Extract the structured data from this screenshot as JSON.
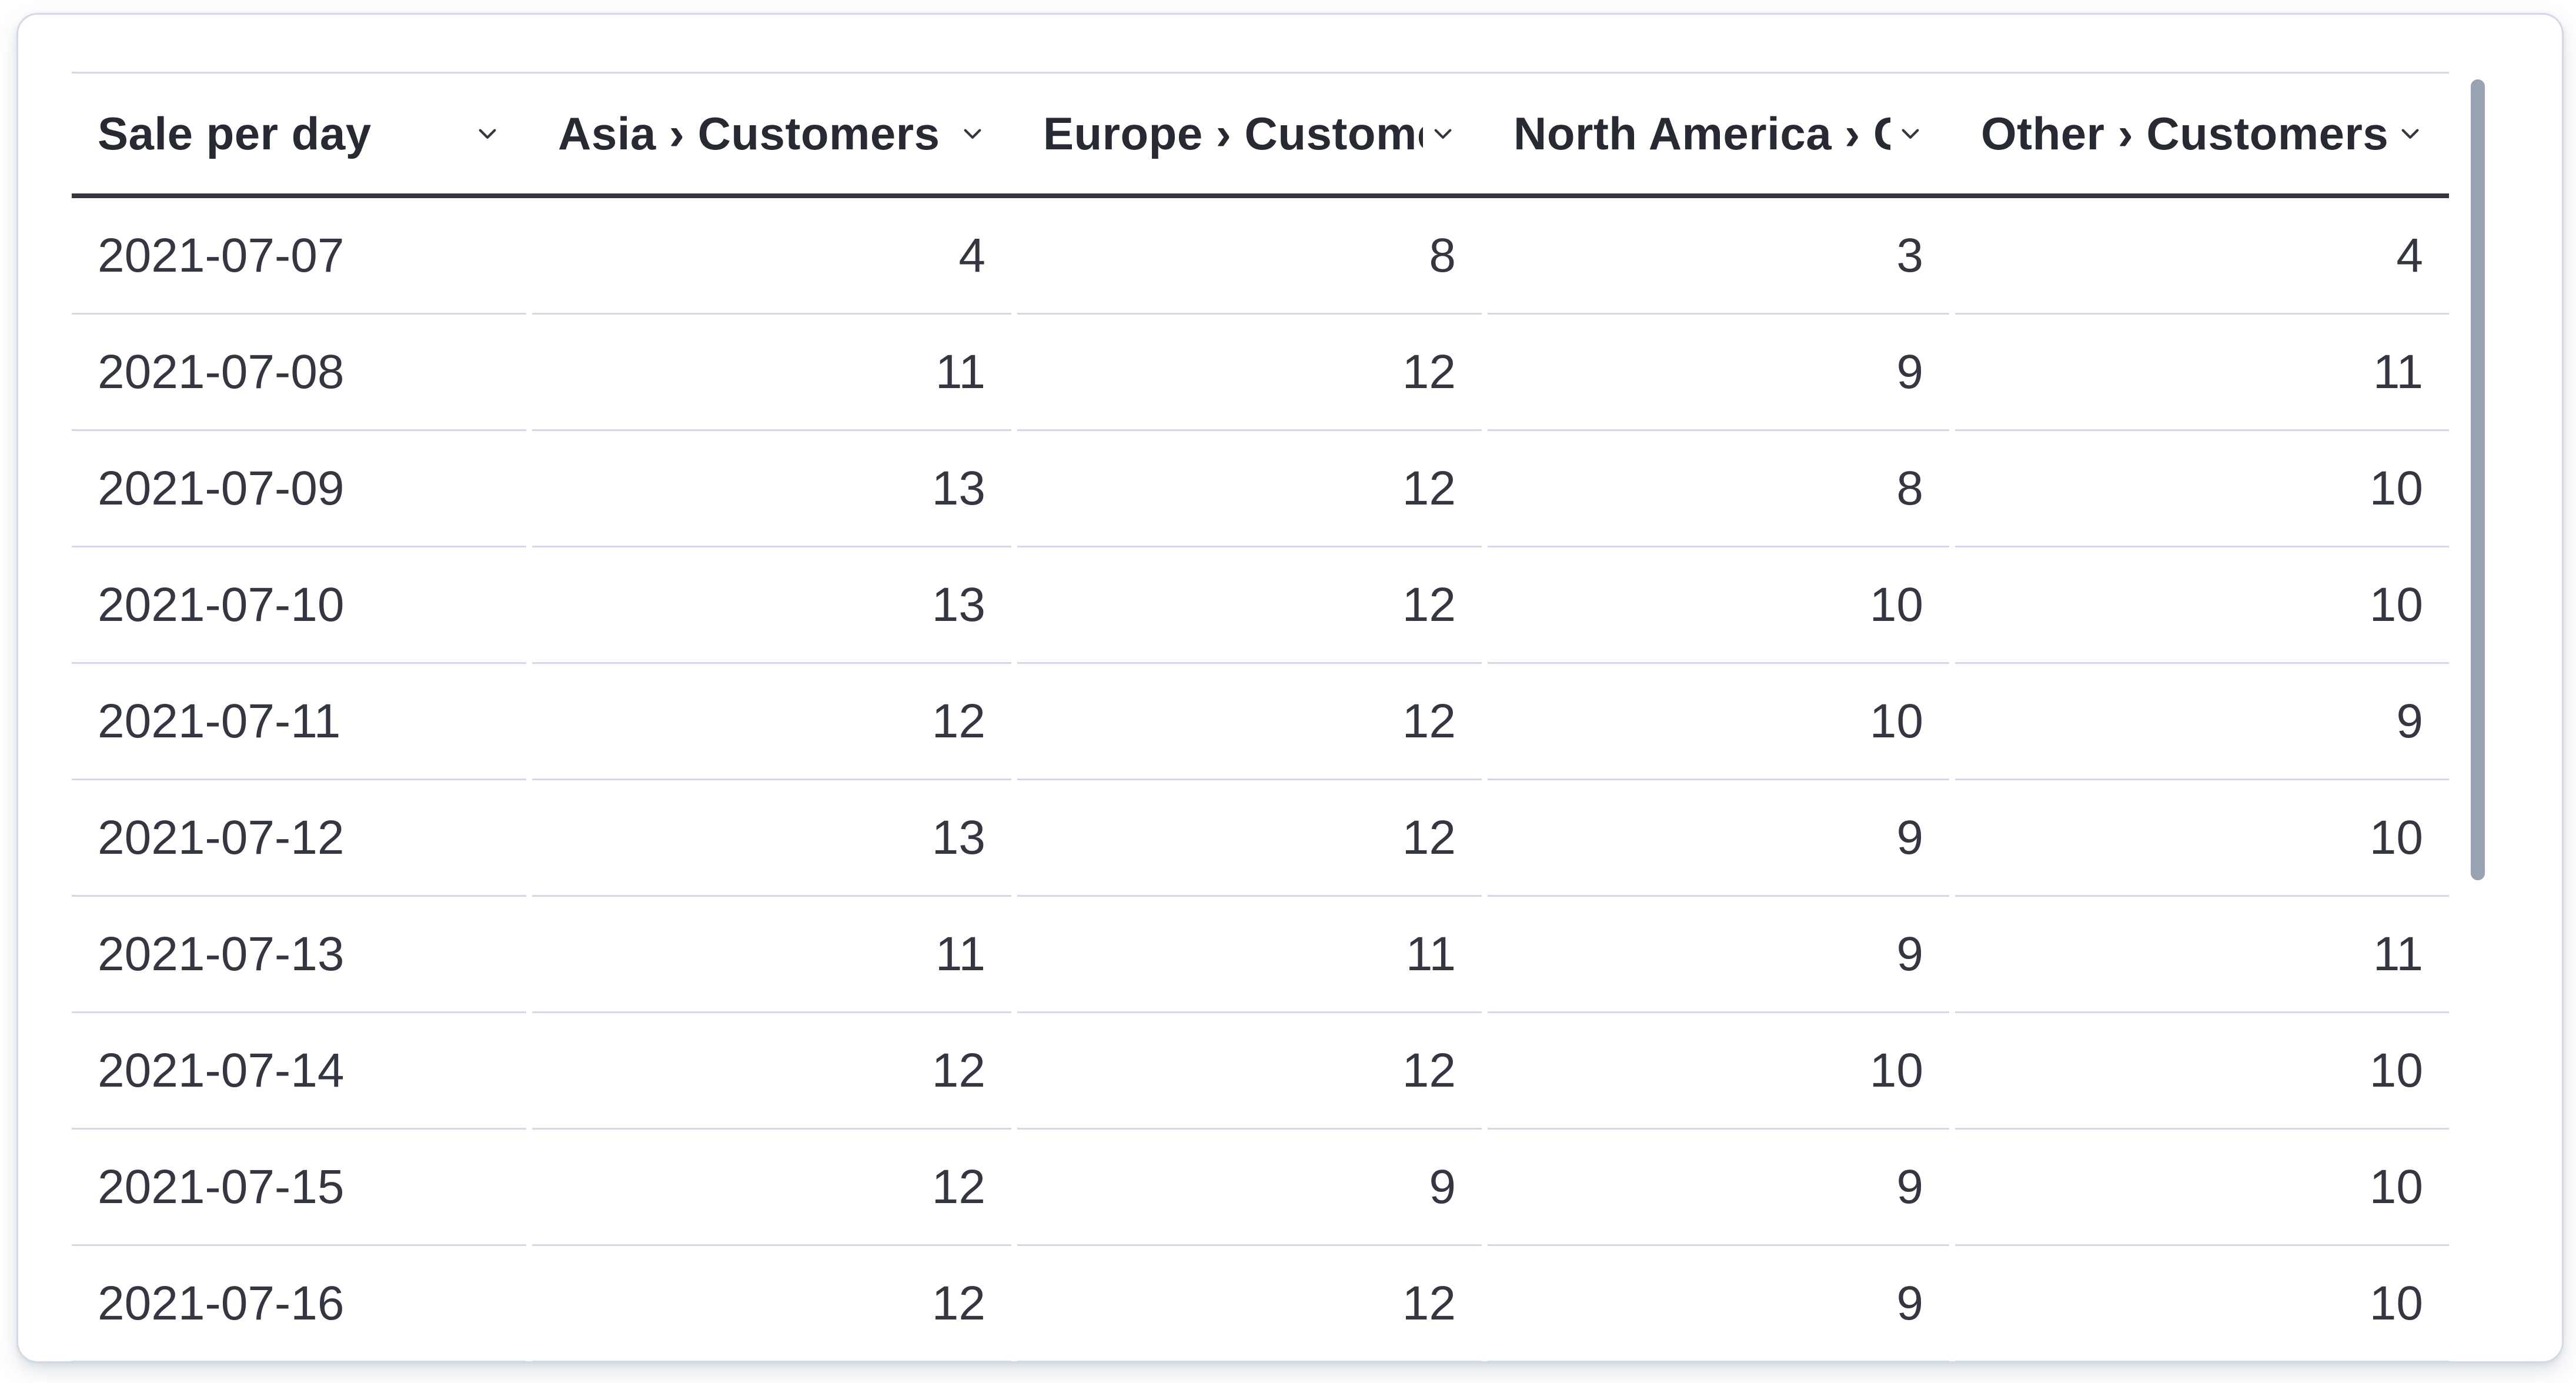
{
  "table": {
    "title": "Sale per day",
    "columns": [
      {
        "label": "Sale per day",
        "align": "left",
        "sortable": true
      },
      {
        "label": "Asia › Customers",
        "align": "right",
        "sortable": true
      },
      {
        "label": "Europe › Customers",
        "align": "right",
        "sortable": true
      },
      {
        "label": "North America › Customers",
        "align": "right",
        "sortable": true
      },
      {
        "label": "Other › Customers",
        "align": "right",
        "sortable": true
      }
    ],
    "rows": [
      [
        "2021-07-07",
        "4",
        "8",
        "3",
        "4"
      ],
      [
        "2021-07-08",
        "11",
        "12",
        "9",
        "11"
      ],
      [
        "2021-07-09",
        "13",
        "12",
        "8",
        "10"
      ],
      [
        "2021-07-10",
        "13",
        "12",
        "10",
        "10"
      ],
      [
        "2021-07-11",
        "12",
        "12",
        "10",
        "9"
      ],
      [
        "2021-07-12",
        "13",
        "12",
        "9",
        "10"
      ],
      [
        "2021-07-13",
        "11",
        "11",
        "9",
        "11"
      ],
      [
        "2021-07-14",
        "12",
        "12",
        "10",
        "10"
      ],
      [
        "2021-07-15",
        "12",
        "9",
        "9",
        "10"
      ],
      [
        "2021-07-16",
        "12",
        "12",
        "9",
        "10"
      ]
    ]
  },
  "icons": {
    "header_sort": "chevron-down-icon"
  },
  "colors": {
    "text": "#343741",
    "header_underline": "#343741",
    "row_divider": "#d3dae6",
    "card_border": "#d3dae6",
    "scrollbar_thumb": "#98a2b3",
    "background": "#ffffff"
  },
  "scrollbar": {
    "orientation": "vertical",
    "visible": true
  }
}
